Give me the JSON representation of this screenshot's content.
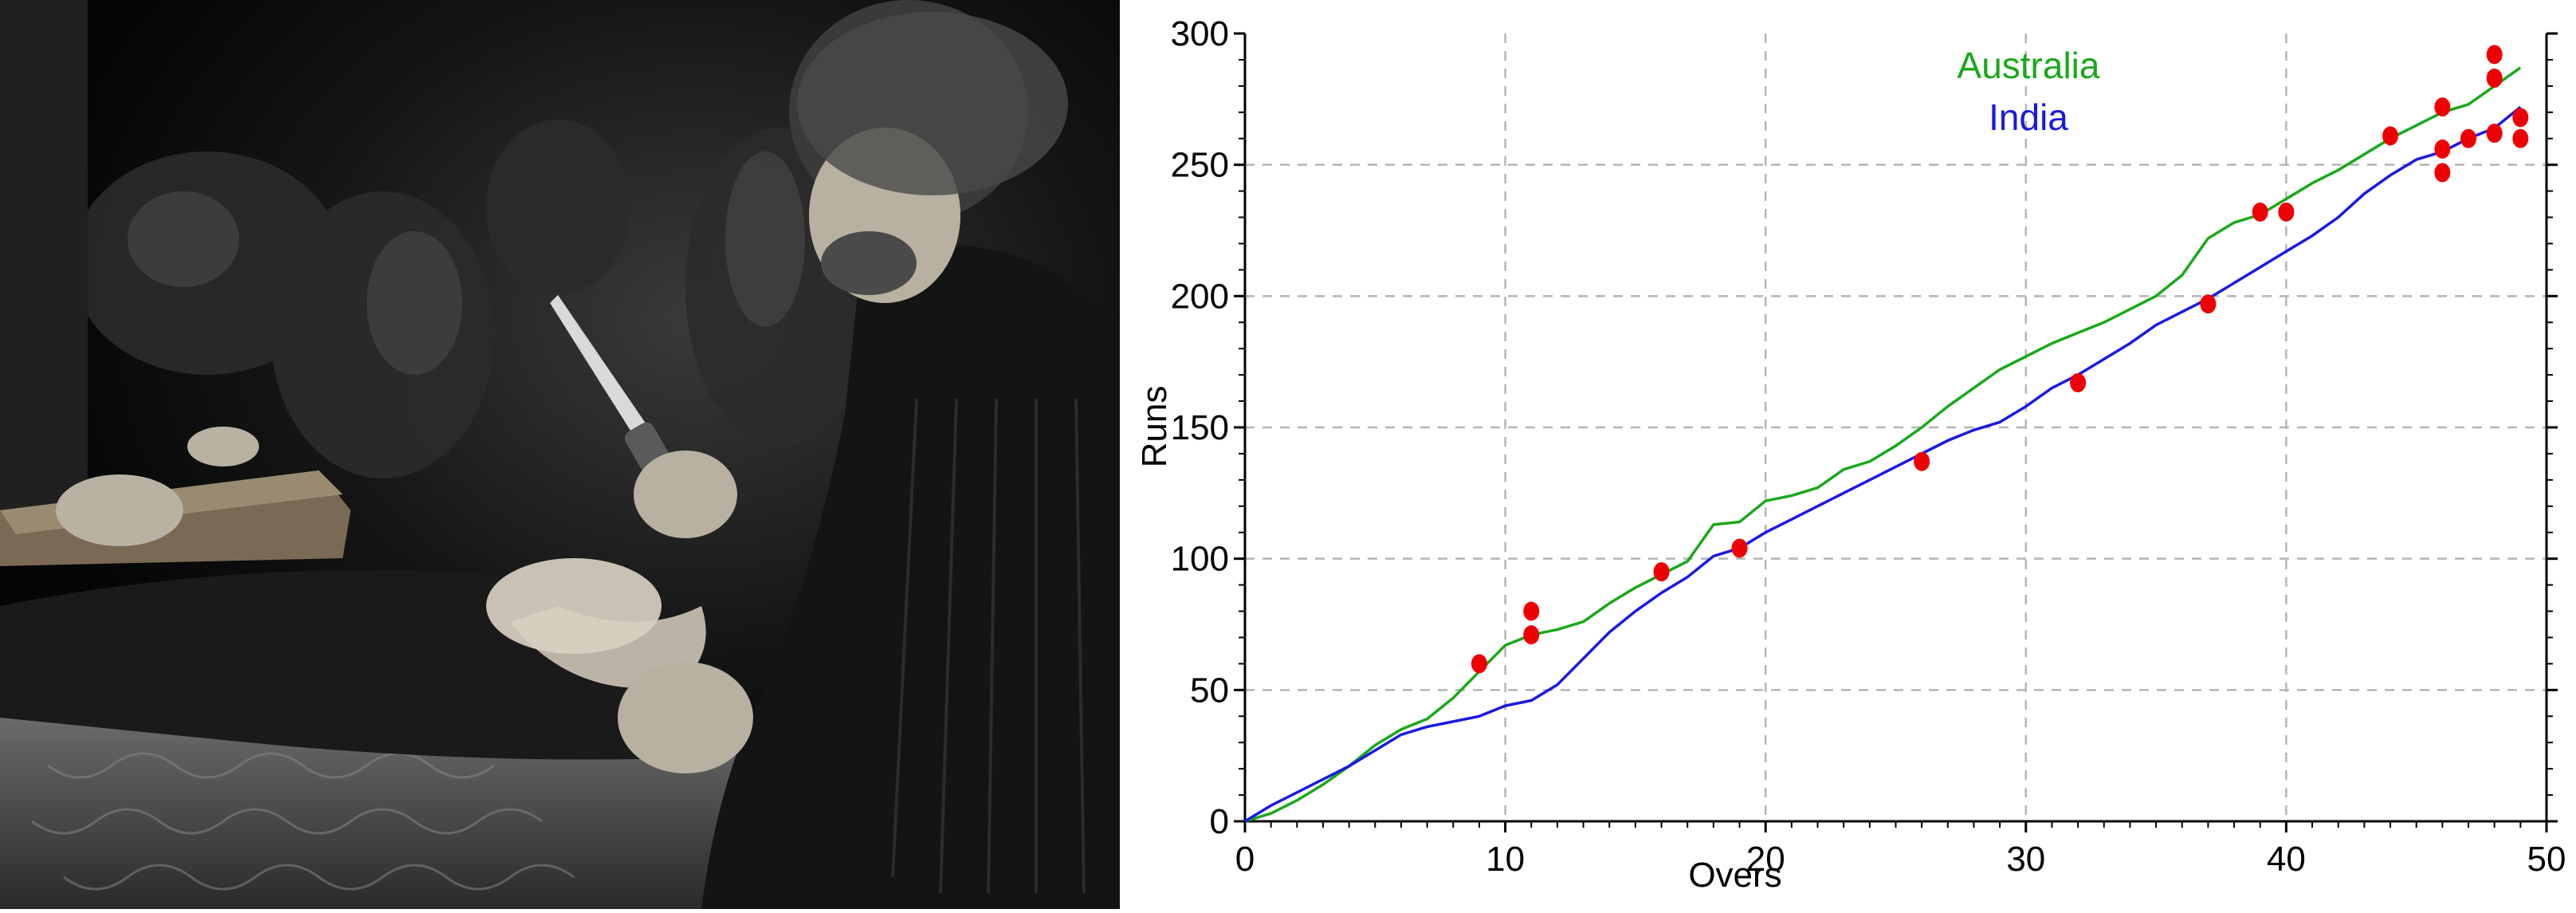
{
  "photo": {
    "description": ""
  },
  "chart_data": {
    "type": "line",
    "xlabel": "Overs",
    "ylabel": "Runs",
    "xlim": [
      0,
      50
    ],
    "ylim": [
      0,
      300
    ],
    "x_ticks": [
      "0",
      "10",
      "20",
      "30",
      "40",
      "50"
    ],
    "y_ticks": [
      "0",
      "50",
      "100",
      "150",
      "200",
      "250",
      "300"
    ],
    "grid": true,
    "legend_placement": "top-center",
    "series": [
      {
        "name": "Australia",
        "color": "#1aa81a",
        "points": [
          [
            0,
            0
          ],
          [
            1,
            3
          ],
          [
            2,
            8
          ],
          [
            3,
            14
          ],
          [
            4,
            21
          ],
          [
            5,
            29
          ],
          [
            6,
            35
          ],
          [
            7,
            39
          ],
          [
            8,
            47
          ],
          [
            9,
            57
          ],
          [
            10,
            67
          ],
          [
            11,
            71
          ],
          [
            12,
            73
          ],
          [
            13,
            76
          ],
          [
            14,
            83
          ],
          [
            15,
            89
          ],
          [
            16,
            94
          ],
          [
            17,
            99
          ],
          [
            18,
            113
          ],
          [
            19,
            114
          ],
          [
            20,
            122
          ],
          [
            21,
            124
          ],
          [
            22,
            127
          ],
          [
            23,
            134
          ],
          [
            24,
            137
          ],
          [
            25,
            143
          ],
          [
            26,
            150
          ],
          [
            27,
            158
          ],
          [
            28,
            165
          ],
          [
            29,
            172
          ],
          [
            30,
            177
          ],
          [
            31,
            182
          ],
          [
            32,
            186
          ],
          [
            33,
            190
          ],
          [
            34,
            195
          ],
          [
            35,
            200
          ],
          [
            36,
            208
          ],
          [
            37,
            222
          ],
          [
            38,
            228
          ],
          [
            39,
            231
          ],
          [
            40,
            237
          ],
          [
            41,
            243
          ],
          [
            42,
            248
          ],
          [
            43,
            254
          ],
          [
            44,
            260
          ],
          [
            45,
            265
          ],
          [
            46,
            270
          ],
          [
            47,
            273
          ],
          [
            48,
            280
          ],
          [
            49,
            287
          ]
        ],
        "wickets": [
          [
            9,
            60
          ],
          [
            11,
            71
          ],
          [
            11,
            80
          ],
          [
            16,
            95
          ],
          [
            39,
            232
          ],
          [
            40,
            232
          ],
          [
            44,
            261
          ],
          [
            46,
            272
          ],
          [
            48,
            283
          ],
          [
            48,
            292
          ]
        ]
      },
      {
        "name": "India",
        "color": "#1a1ae0",
        "points": [
          [
            0,
            0
          ],
          [
            1,
            6
          ],
          [
            2,
            11
          ],
          [
            3,
            16
          ],
          [
            4,
            21
          ],
          [
            5,
            27
          ],
          [
            6,
            33
          ],
          [
            7,
            36
          ],
          [
            8,
            38
          ],
          [
            9,
            40
          ],
          [
            10,
            44
          ],
          [
            11,
            46
          ],
          [
            12,
            52
          ],
          [
            13,
            62
          ],
          [
            14,
            72
          ],
          [
            15,
            80
          ],
          [
            16,
            87
          ],
          [
            17,
            93
          ],
          [
            18,
            101
          ],
          [
            19,
            104
          ],
          [
            20,
            110
          ],
          [
            21,
            115
          ],
          [
            22,
            120
          ],
          [
            23,
            125
          ],
          [
            24,
            130
          ],
          [
            25,
            135
          ],
          [
            26,
            140
          ],
          [
            27,
            145
          ],
          [
            28,
            149
          ],
          [
            29,
            152
          ],
          [
            30,
            158
          ],
          [
            31,
            165
          ],
          [
            32,
            170
          ],
          [
            33,
            176
          ],
          [
            34,
            182
          ],
          [
            35,
            189
          ],
          [
            36,
            194
          ],
          [
            37,
            199
          ],
          [
            38,
            205
          ],
          [
            39,
            211
          ],
          [
            40,
            217
          ],
          [
            41,
            223
          ],
          [
            42,
            230
          ],
          [
            43,
            239
          ],
          [
            44,
            246
          ],
          [
            45,
            252
          ],
          [
            46,
            255
          ],
          [
            47,
            260
          ],
          [
            48,
            264
          ],
          [
            49,
            272
          ]
        ],
        "wickets": [
          [
            19,
            104
          ],
          [
            26,
            137
          ],
          [
            32,
            167
          ],
          [
            37,
            197
          ],
          [
            46,
            247
          ],
          [
            46,
            256
          ],
          [
            47,
            260
          ],
          [
            48,
            262
          ],
          [
            49,
            260
          ],
          [
            49,
            268
          ]
        ]
      }
    ],
    "wicket_marker_color": "#ee0000"
  }
}
